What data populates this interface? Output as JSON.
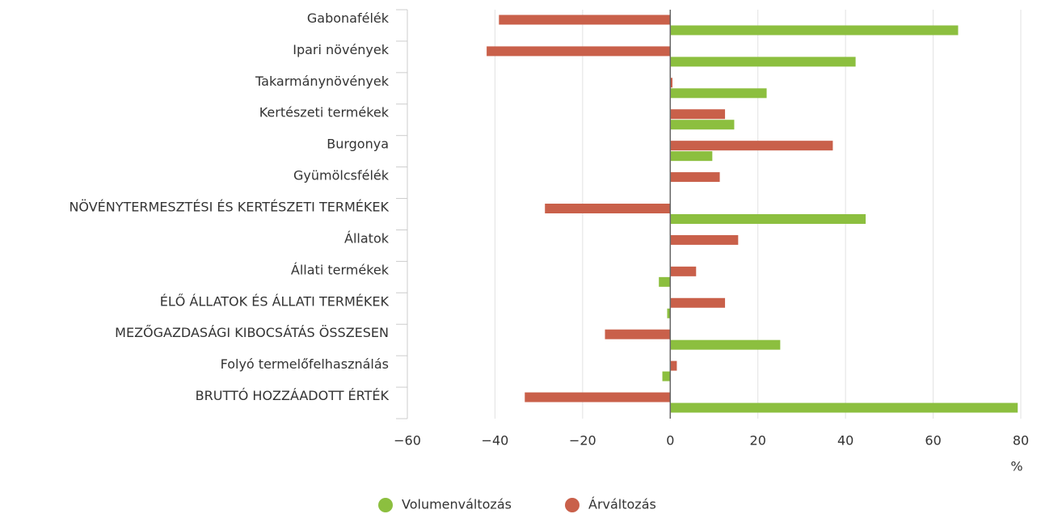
{
  "chart_data": {
    "type": "hbar",
    "categories": [
      "Gabonafélék",
      "Ipari növények",
      "Takarmánynövények",
      "Kertészeti termékek",
      "Burgonya",
      "Gyümölcsfélék",
      "NÖVÉNYTERMESZTÉSI ÉS KERTÉSZETI TERMÉKEK",
      "Állatok",
      "Állati termékek",
      "ÉLŐ ÁLLATOK ÉS ÁLLATI TERMÉKEK",
      "MEZŐGAZDASÁGI KIBOCSÁTÁS ÖSSZESEN",
      "Folyó termelőfelhasználás",
      "BRUTTÓ HOZZÁADOTT ÉRTÉK"
    ],
    "series": [
      {
        "name": "Volumenváltozás",
        "color": "#8cbf3f",
        "values": [
          65.7,
          42.3,
          22.0,
          14.6,
          9.6,
          0,
          44.6,
          0,
          -2.6,
          -0.7,
          25.1,
          -1.8,
          79.3
        ]
      },
      {
        "name": "Árváltozás",
        "color": "#c9604a",
        "values": [
          -39.1,
          -41.9,
          0.5,
          12.5,
          37.1,
          11.3,
          -28.6,
          15.5,
          5.9,
          12.5,
          -14.9,
          1.5,
          -33.2
        ]
      }
    ],
    "xlabel": "%",
    "xlim": [
      -60,
      80
    ],
    "xticks": [
      {
        "value": -60,
        "label": "−60"
      },
      {
        "value": -40,
        "label": "−40"
      },
      {
        "value": -20,
        "label": "−20"
      },
      0,
      20,
      40,
      60,
      80
    ],
    "grid": true,
    "legend": "bottom"
  }
}
